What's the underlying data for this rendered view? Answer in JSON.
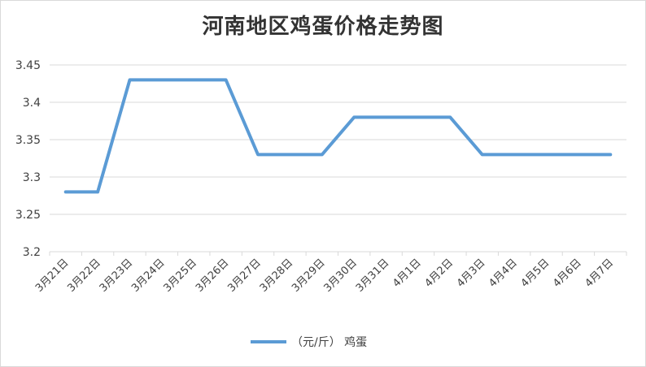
{
  "chart_data": {
    "type": "line",
    "title": "河南地区鸡蛋价格走势图",
    "categories": [
      "3月21日",
      "3月22日",
      "3月23日",
      "3月24日",
      "3月25日",
      "3月26日",
      "3月27日",
      "3月28日",
      "3月29日",
      "3月30日",
      "3月31日",
      "4月1日",
      "4月2日",
      "4月3日",
      "4月4日",
      "4月5日",
      "4月6日",
      "4月7日"
    ],
    "series": [
      {
        "name": "（元/斤） 鸡蛋",
        "values": [
          3.28,
          3.28,
          3.43,
          3.43,
          3.43,
          3.43,
          3.33,
          3.33,
          3.33,
          3.38,
          3.38,
          3.38,
          3.38,
          3.33,
          3.33,
          3.33,
          3.33,
          3.33
        ],
        "color": "#5b9bd5"
      }
    ],
    "y_ticks": [
      "3.2",
      "3.25",
      "3.3",
      "3.35",
      "3.4",
      "3.45"
    ],
    "ylim": [
      3.2,
      3.45
    ],
    "grid": true,
    "legend_position": "bottom"
  }
}
